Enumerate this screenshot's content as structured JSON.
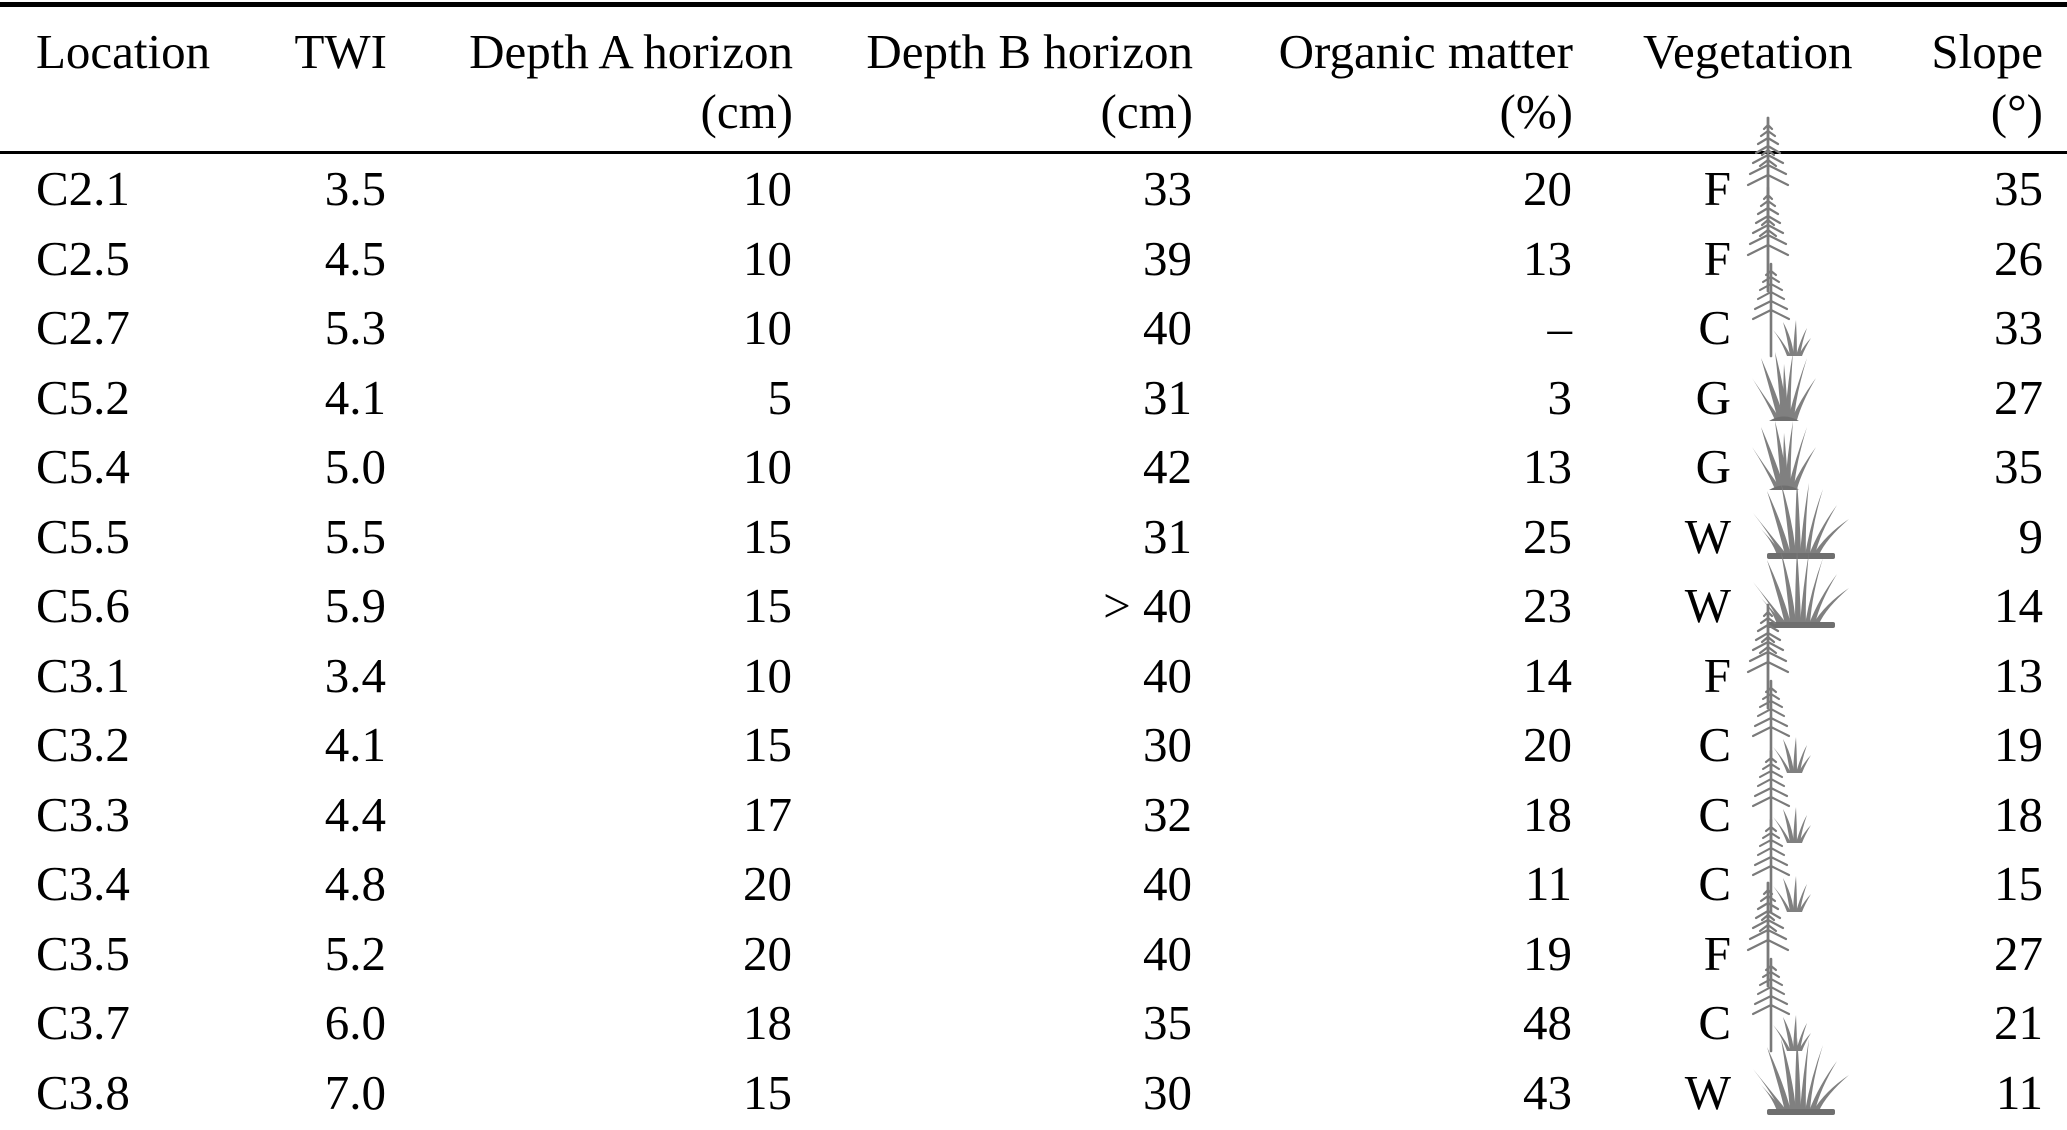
{
  "table": {
    "columns": [
      {
        "label": "Location",
        "unit": ""
      },
      {
        "label": "TWI",
        "unit": ""
      },
      {
        "label": "Depth A horizon",
        "unit": "(cm)"
      },
      {
        "label": "Depth B horizon",
        "unit": "(cm)"
      },
      {
        "label": "Organic matter",
        "unit": "(%)"
      },
      {
        "label": "Vegetation",
        "unit": ""
      },
      {
        "label": "Slope",
        "unit": "(°)"
      }
    ],
    "rows": [
      {
        "location": "C2.1",
        "twi": "3.5",
        "depth_a": "10",
        "depth_b": "33",
        "organic_matter": "20",
        "vegetation": "F",
        "slope": "35"
      },
      {
        "location": "C2.5",
        "twi": "4.5",
        "depth_a": "10",
        "depth_b": "39",
        "organic_matter": "13",
        "vegetation": "F",
        "slope": "26"
      },
      {
        "location": "C2.7",
        "twi": "5.3",
        "depth_a": "10",
        "depth_b": "40",
        "organic_matter": "–",
        "vegetation": "C",
        "slope": "33"
      },
      {
        "location": "C5.2",
        "twi": "4.1",
        "depth_a": "5",
        "depth_b": "31",
        "organic_matter": "3",
        "vegetation": "G",
        "slope": "27"
      },
      {
        "location": "C5.4",
        "twi": "5.0",
        "depth_a": "10",
        "depth_b": "42",
        "organic_matter": "13",
        "vegetation": "G",
        "slope": "35"
      },
      {
        "location": "C5.5",
        "twi": "5.5",
        "depth_a": "15",
        "depth_b": "31",
        "organic_matter": "25",
        "vegetation": "W",
        "slope": "9"
      },
      {
        "location": "C5.6",
        "twi": "5.9",
        "depth_a": "15",
        "depth_b": "> 40",
        "organic_matter": "23",
        "vegetation": "W",
        "slope": "14"
      },
      {
        "location": "C3.1",
        "twi": "3.4",
        "depth_a": "10",
        "depth_b": "40",
        "organic_matter": "14",
        "vegetation": "F",
        "slope": "13"
      },
      {
        "location": "C3.2",
        "twi": "4.1",
        "depth_a": "15",
        "depth_b": "30",
        "organic_matter": "20",
        "vegetation": "C",
        "slope": "19"
      },
      {
        "location": "C3.3",
        "twi": "4.4",
        "depth_a": "17",
        "depth_b": "32",
        "organic_matter": "18",
        "vegetation": "C",
        "slope": "18"
      },
      {
        "location": "C3.4",
        "twi": "4.8",
        "depth_a": "20",
        "depth_b": "40",
        "organic_matter": "11",
        "vegetation": "C",
        "slope": "15"
      },
      {
        "location": "C3.5",
        "twi": "5.2",
        "depth_a": "20",
        "depth_b": "40",
        "organic_matter": "19",
        "vegetation": "F",
        "slope": "27"
      },
      {
        "location": "C3.7",
        "twi": "6.0",
        "depth_a": "18",
        "depth_b": "35",
        "organic_matter": "48",
        "vegetation": "C",
        "slope": "21"
      },
      {
        "location": "C3.8",
        "twi": "7.0",
        "depth_a": "15",
        "depth_b": "30",
        "organic_matter": "43",
        "vegetation": "W",
        "slope": "11"
      }
    ]
  },
  "icons": {
    "F": "conifer-icon",
    "C": "conifer-grass-icon",
    "G": "grass-tuft-icon",
    "W": "wetland-grass-icon"
  },
  "colors": {
    "text": "#000000",
    "rule": "#000000",
    "icon_gray": "#7a7a7a",
    "icon_gray_dark": "#6f6f6f",
    "background": "#ffffff"
  }
}
